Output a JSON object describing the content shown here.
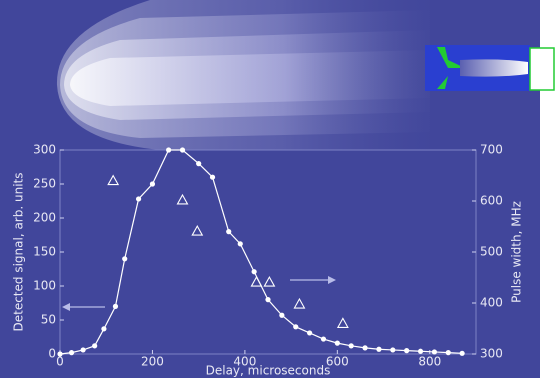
{
  "chart_data": {
    "type": "line",
    "x_label": "Delay, microseconds",
    "y_label": "Detected signal, arb. units",
    "y2_label": "Pulse width, MHz",
    "xlim": [
      0,
      900
    ],
    "xticks": [
      0,
      200,
      400,
      600,
      800
    ],
    "ylim": [
      0,
      300
    ],
    "yticks": [
      0,
      50,
      100,
      150,
      200,
      250,
      300
    ],
    "y2lim": [
      300,
      700
    ],
    "y2ticks": [
      300,
      400,
      500,
      600,
      700
    ],
    "series": [
      {
        "color": "#ffffff",
        "marker": "circle",
        "x": [
          0,
          25,
          50,
          75,
          95,
          120,
          140,
          170,
          200,
          235,
          265,
          300,
          330,
          365,
          390,
          420,
          450,
          480,
          510,
          540,
          570,
          600,
          630,
          660,
          690,
          720,
          750,
          780,
          810,
          840,
          870
        ],
        "values": [
          0,
          2,
          6,
          12,
          37,
          70,
          140,
          228,
          250,
          300,
          300,
          280,
          260,
          180,
          162,
          121,
          80,
          57,
          40,
          31,
          22,
          16,
          12,
          9,
          7,
          6,
          5,
          4,
          3,
          2,
          1
        ]
      },
      {
        "color": "#ffffff",
        "marker": "triangle",
        "axis": "y2",
        "x": [
          115,
          265,
          297,
          425,
          453,
          518,
          612
        ],
        "values": [
          640,
          602,
          541,
          441,
          441,
          398,
          360
        ]
      }
    ]
  }
}
